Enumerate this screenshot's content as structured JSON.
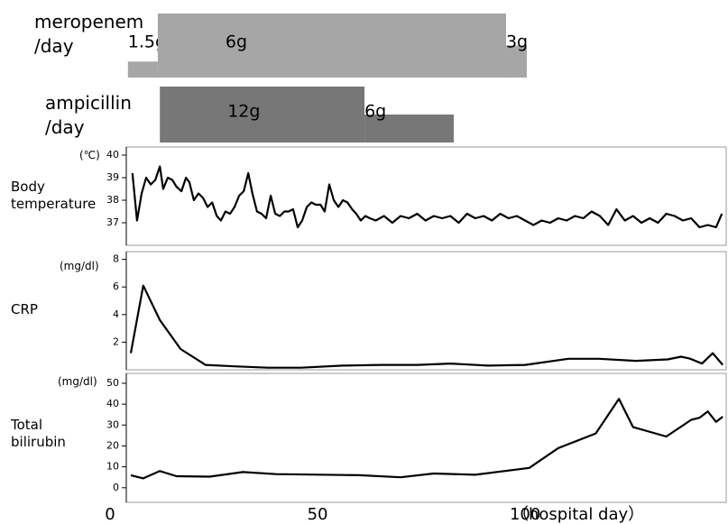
{
  "chart_data": [
    {
      "type": "gantt",
      "xlim": [
        0,
        148
      ],
      "series": [
        {
          "name": "meropenem",
          "unit": "/day",
          "color": "#a6a6a6",
          "segments": [
            {
              "label": "1.5g",
              "dose": 1.5,
              "start": 4.3,
              "end": 11.5
            },
            {
              "label": "6g",
              "dose": 6,
              "start": 11.5,
              "end": 95.4
            },
            {
              "label": "3g",
              "dose": 3,
              "start": 95.4,
              "end": 100.4
            }
          ]
        },
        {
          "name": "ampicillin",
          "unit": "/day",
          "color": "#777777",
          "segments": [
            {
              "label": "12g",
              "dose": 12,
              "start": 12,
              "end": 61.3
            },
            {
              "label": "6g",
              "dose": 6,
              "start": 61.3,
              "end": 82.8
            }
          ]
        }
      ]
    },
    {
      "type": "line",
      "ylabel": "Body temperature",
      "unit": "(℃)",
      "color": "#000000",
      "xlim": [
        0,
        148
      ],
      "ylim": [
        36,
        40.2
      ],
      "yticks": [
        37,
        38,
        39,
        40
      ],
      "x": [
        5.4,
        6.5,
        7.6,
        8.7,
        9.8,
        10.9,
        12,
        12.8,
        13.9,
        15,
        16,
        17.2,
        18.3,
        19.1,
        20.2,
        21.3,
        22.4,
        23.5,
        24.6,
        25.7,
        26.7,
        27.8,
        28.9,
        30,
        31.1,
        32.2,
        33.3,
        34.3,
        35.4,
        36.5,
        37.6,
        38.7,
        39.8,
        40.9,
        42,
        43,
        44.1,
        45.2,
        46.3,
        47.4,
        48.5,
        49.6,
        50.7,
        51.7,
        52.8,
        53.9,
        55,
        56.1,
        57.2,
        58.3,
        59.3,
        60.4,
        61.5,
        62.6,
        64,
        66,
        68,
        70,
        72,
        74,
        76,
        78,
        80,
        82,
        84,
        86,
        88,
        90,
        92,
        94,
        96,
        98,
        100,
        102,
        104,
        106,
        108,
        110,
        112,
        114,
        116,
        118,
        120,
        122,
        124,
        126,
        128,
        130,
        132,
        134,
        136,
        138,
        140,
        142,
        144,
        146,
        147.4
      ],
      "values": [
        39.2,
        37.1,
        38.3,
        39.0,
        38.7,
        38.9,
        39.5,
        38.5,
        39.0,
        38.9,
        38.6,
        38.4,
        39.0,
        38.8,
        38.0,
        38.3,
        38.1,
        37.7,
        37.9,
        37.3,
        37.1,
        37.5,
        37.4,
        37.7,
        38.2,
        38.4,
        39.2,
        38.3,
        37.5,
        37.4,
        37.2,
        38.2,
        37.4,
        37.3,
        37.5,
        37.5,
        37.6,
        36.8,
        37.1,
        37.7,
        37.9,
        37.8,
        37.8,
        37.5,
        38.7,
        38.0,
        37.7,
        38.0,
        37.9,
        37.6,
        37.4,
        37.1,
        37.3,
        37.2,
        37.1,
        37.3,
        37.0,
        37.3,
        37.2,
        37.4,
        37.1,
        37.3,
        37.2,
        37.3,
        37.0,
        37.4,
        37.2,
        37.3,
        37.1,
        37.4,
        37.2,
        37.3,
        37.1,
        36.9,
        37.1,
        37.0,
        37.2,
        37.1,
        37.3,
        37.2,
        37.5,
        37.3,
        36.9,
        37.6,
        37.1,
        37.3,
        37.0,
        37.2,
        37.0,
        37.4,
        37.3,
        37.1,
        37.2,
        36.8,
        36.9,
        36.8,
        37.4
      ]
    },
    {
      "type": "line",
      "ylabel": "CRP",
      "unit": "(mg/dl)",
      "color": "#000000",
      "xlim": [
        0,
        148
      ],
      "ylim": [
        0,
        8.3
      ],
      "yticks": [
        2,
        4,
        6,
        8
      ],
      "x": [
        5,
        8,
        12,
        17,
        23,
        30,
        38,
        46,
        56,
        65,
        74,
        82,
        91,
        100,
        110.4,
        117.8,
        126.7,
        134.3,
        137.6,
        139.8,
        142.6,
        145.2,
        147.6
      ],
      "values": [
        1.2,
        6.1,
        3.6,
        1.5,
        0.35,
        0.25,
        0.15,
        0.15,
        0.3,
        0.35,
        0.35,
        0.45,
        0.3,
        0.35,
        0.8,
        0.8,
        0.65,
        0.75,
        0.95,
        0.8,
        0.45,
        1.2,
        0.35
      ]
    },
    {
      "type": "line",
      "ylabel": "Total bilirubin",
      "unit": "(mg/dl)",
      "color": "#000000",
      "xlim": [
        0,
        148
      ],
      "ylim": [
        -7,
        53
      ],
      "yticks": [
        0,
        10,
        20,
        30,
        40,
        50
      ],
      "xticks": [
        0,
        50,
        100
      ],
      "xlabel": "（hospital day）",
      "x": [
        5,
        8,
        12,
        16,
        24,
        32,
        40,
        60,
        70,
        78,
        88,
        101,
        108,
        117,
        122.6,
        126,
        134,
        140,
        142,
        144,
        146,
        147.6
      ],
      "values": [
        6,
        4.5,
        8,
        5.5,
        5.3,
        7.5,
        6.5,
        6,
        5,
        6.8,
        6.2,
        9.5,
        19,
        26,
        42.5,
        29,
        24.5,
        32.5,
        33.5,
        36.5,
        31.5,
        34
      ]
    }
  ]
}
